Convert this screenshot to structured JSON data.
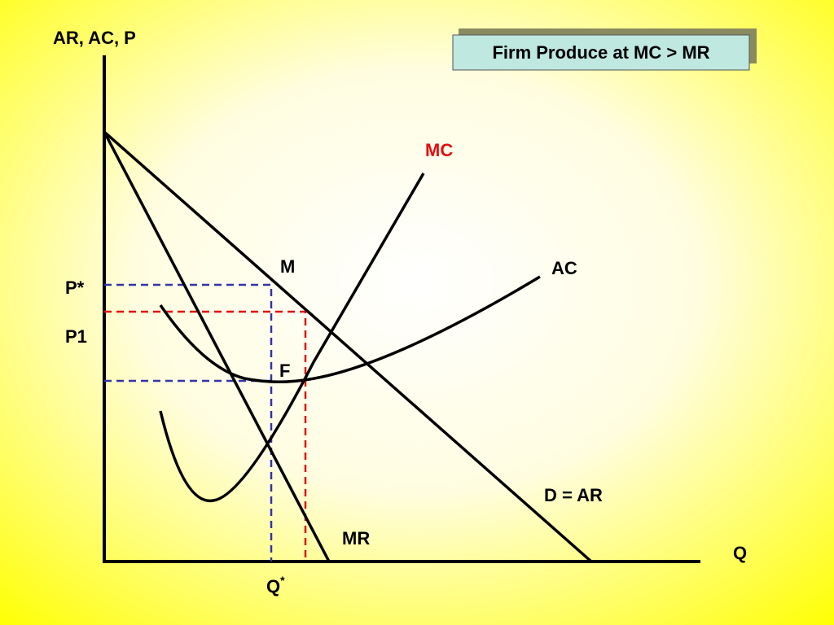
{
  "title": "Firm Produce at MC > MR",
  "axes": {
    "y_label": "AR, AC, P",
    "x_label": "Q"
  },
  "curves": {
    "mc": "MC",
    "ac": "AC",
    "mr": "MR",
    "demand": "D = AR"
  },
  "points": {
    "m": "M",
    "f": "F",
    "p_star": "P*",
    "p1": "P1",
    "q_star": {
      "base": "Q",
      "sup": "*"
    }
  }
}
